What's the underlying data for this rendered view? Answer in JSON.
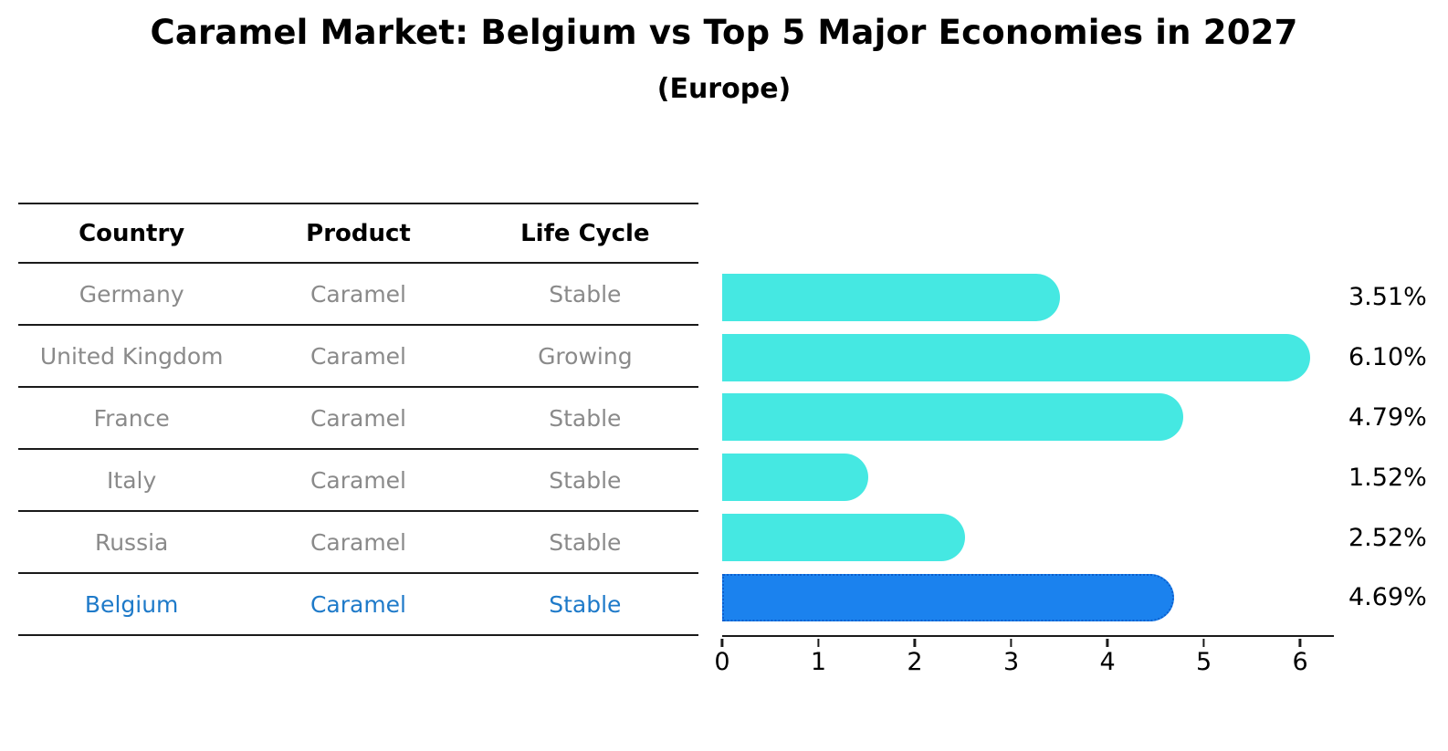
{
  "title": "Caramel Market: Belgium vs Top 5 Major Economies in 2027",
  "subtitle": "(Europe)",
  "table": {
    "headers": [
      "Country",
      "Product",
      "Life Cycle"
    ],
    "rows": [
      {
        "country": "Germany",
        "product": "Caramel",
        "life_cycle": "Stable",
        "highlight": false
      },
      {
        "country": "United Kingdom",
        "product": "Caramel",
        "life_cycle": "Growing",
        "highlight": false
      },
      {
        "country": "France",
        "product": "Caramel",
        "life_cycle": "Stable",
        "highlight": false
      },
      {
        "country": "Italy",
        "product": "Caramel",
        "life_cycle": "Stable",
        "highlight": false
      },
      {
        "country": "Russia",
        "product": "Caramel",
        "life_cycle": "Stable",
        "highlight": false
      },
      {
        "country": "Belgium",
        "product": "Caramel",
        "life_cycle": "Stable",
        "highlight": true
      }
    ]
  },
  "chart_data": {
    "type": "bar",
    "orientation": "horizontal",
    "title": "Caramel Market: Belgium vs Top 5 Major Economies in 2027",
    "subtitle": "(Europe)",
    "categories": [
      "Germany",
      "United Kingdom",
      "France",
      "Italy",
      "Russia",
      "Belgium"
    ],
    "values": [
      3.51,
      6.1,
      4.79,
      1.52,
      2.52,
      4.69
    ],
    "value_labels": [
      "3.51%",
      "6.10%",
      "4.79%",
      "1.52%",
      "2.52%",
      "4.69%"
    ],
    "xticks": [
      0,
      1,
      2,
      3,
      4,
      5,
      6
    ],
    "xlim": [
      0,
      6.35
    ],
    "xlabel": "",
    "ylabel": "",
    "grid": false,
    "legend": false,
    "bar_color": "#45E8E2",
    "highlight_index": 5,
    "highlight_color": "#1B82EE",
    "highlight_border_color": "#0C5FCE",
    "highlight_text_color": "#1E7AC9"
  }
}
